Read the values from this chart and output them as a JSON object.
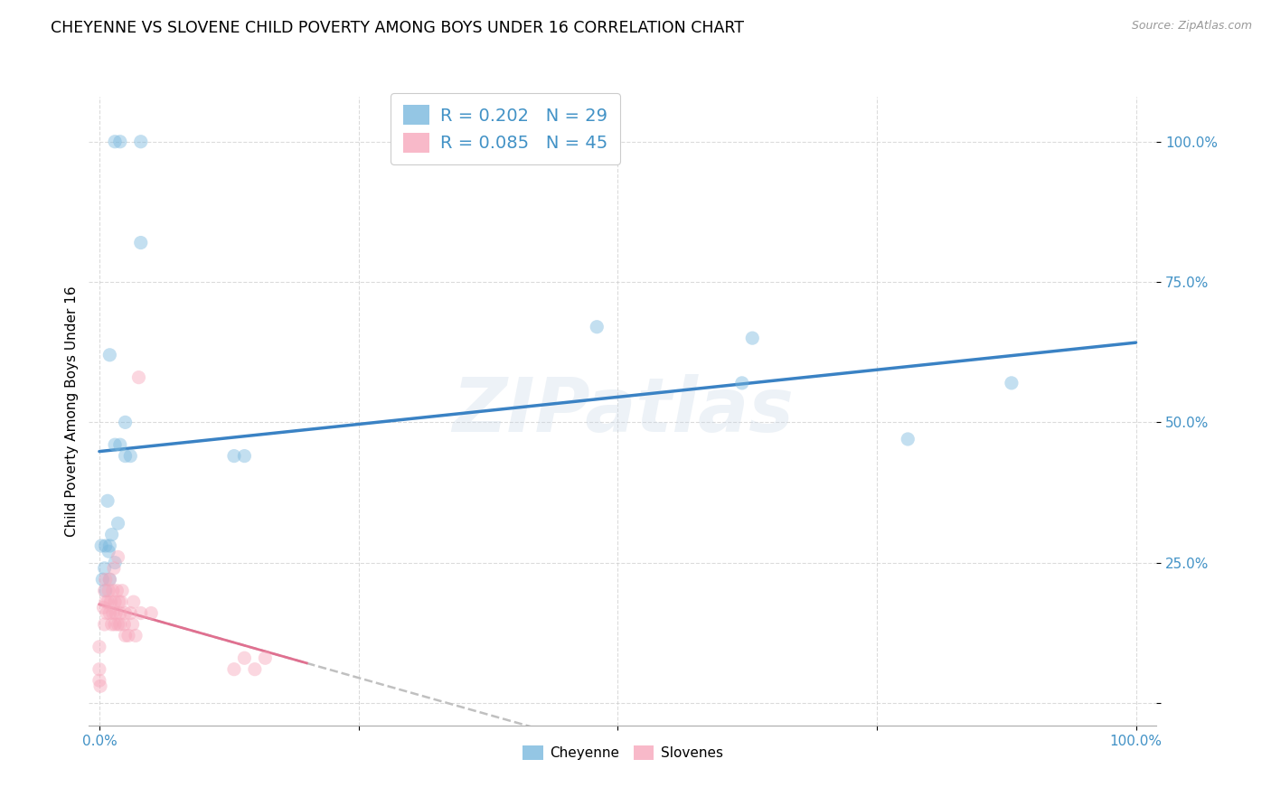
{
  "title": "CHEYENNE VS SLOVENE CHILD POVERTY AMONG BOYS UNDER 16 CORRELATION CHART",
  "source": "Source: ZipAtlas.com",
  "ylabel": "Child Poverty Among Boys Under 16",
  "watermark": "ZIPatlas",
  "cheyenne_R": 0.202,
  "cheyenne_N": 29,
  "slovene_R": 0.085,
  "slovene_N": 45,
  "cheyenne_color": "#7ab8de",
  "slovene_color": "#f7a8bc",
  "cheyenne_line_color": "#3a82c4",
  "slovene_line_color": "#e07090",
  "dashed_line_color": "#c0c0c0",
  "bg_color": "#ffffff",
  "grid_color": "#cccccc",
  "blue_color": "#4292c6",
  "cheyenne_x": [
    0.015,
    0.02,
    0.04,
    0.04,
    0.01,
    0.015,
    0.02,
    0.025,
    0.025,
    0.03,
    0.13,
    0.14,
    0.48,
    0.62,
    0.63,
    0.78,
    0.88,
    0.002,
    0.003,
    0.005,
    0.006,
    0.006,
    0.008,
    0.009,
    0.01,
    0.01,
    0.012,
    0.015,
    0.018
  ],
  "cheyenne_y": [
    1.0,
    1.0,
    1.0,
    0.82,
    0.62,
    0.46,
    0.46,
    0.5,
    0.44,
    0.44,
    0.44,
    0.44,
    0.67,
    0.57,
    0.65,
    0.47,
    0.57,
    0.28,
    0.22,
    0.24,
    0.2,
    0.28,
    0.36,
    0.27,
    0.22,
    0.28,
    0.3,
    0.25,
    0.32
  ],
  "slovene_x": [
    0.0,
    0.0,
    0.0,
    0.001,
    0.004,
    0.005,
    0.005,
    0.006,
    0.006,
    0.007,
    0.008,
    0.009,
    0.01,
    0.01,
    0.011,
    0.012,
    0.013,
    0.013,
    0.014,
    0.015,
    0.015,
    0.016,
    0.017,
    0.018,
    0.018,
    0.019,
    0.02,
    0.02,
    0.021,
    0.022,
    0.024,
    0.025,
    0.025,
    0.028,
    0.03,
    0.032,
    0.033,
    0.035,
    0.038,
    0.04,
    0.05,
    0.13,
    0.14,
    0.15,
    0.16
  ],
  "slovene_y": [
    0.06,
    0.04,
    0.1,
    0.03,
    0.17,
    0.14,
    0.2,
    0.18,
    0.22,
    0.16,
    0.18,
    0.2,
    0.16,
    0.22,
    0.18,
    0.14,
    0.16,
    0.2,
    0.24,
    0.14,
    0.18,
    0.16,
    0.2,
    0.26,
    0.14,
    0.18,
    0.14,
    0.16,
    0.18,
    0.2,
    0.14,
    0.12,
    0.16,
    0.12,
    0.16,
    0.14,
    0.18,
    0.12,
    0.58,
    0.16,
    0.16,
    0.06,
    0.08,
    0.06,
    0.08
  ],
  "marker_size": 120,
  "marker_alpha": 0.45,
  "xlim": [
    -0.01,
    1.02
  ],
  "ylim": [
    -0.04,
    1.08
  ],
  "xticks": [
    0.0,
    0.25,
    0.5,
    0.75,
    1.0
  ],
  "yticks": [
    0.0,
    0.25,
    0.5,
    0.75,
    1.0
  ],
  "xtick_labels": [
    "0.0%",
    "",
    "",
    "",
    "100.0%"
  ],
  "ytick_labels": [
    "",
    "25.0%",
    "50.0%",
    "75.0%",
    "100.0%"
  ],
  "title_fontsize": 12.5,
  "tick_fontsize": 11,
  "legend_fontsize": 14,
  "ylabel_fontsize": 11
}
